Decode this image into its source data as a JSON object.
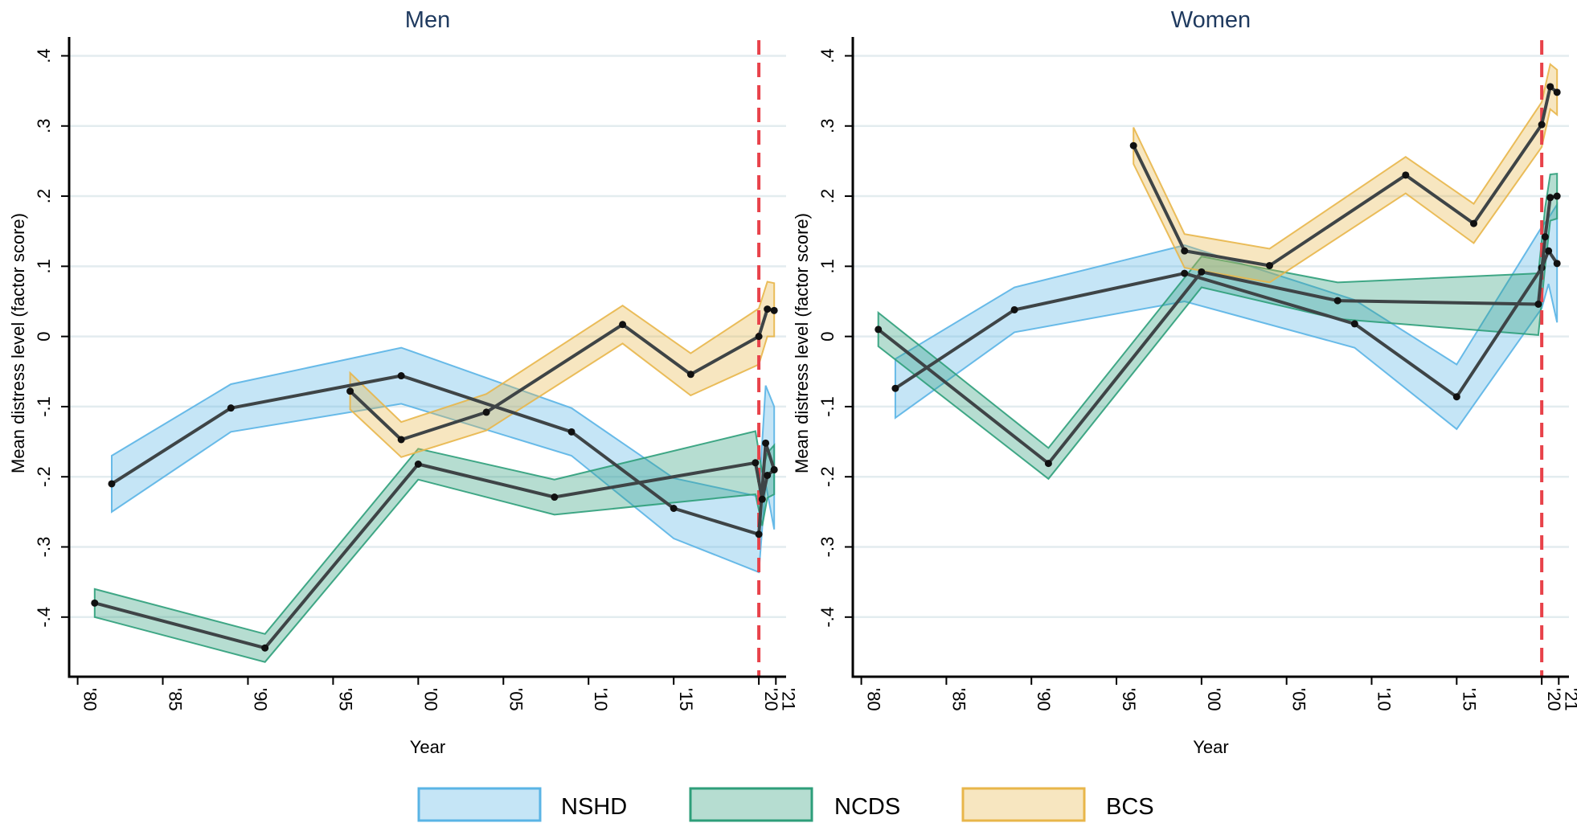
{
  "legend": {
    "items": [
      {
        "label": "NSHD",
        "color": "#5AB4E5"
      },
      {
        "label": "NCDS",
        "color": "#2E9E7A"
      },
      {
        "label": "BCS",
        "color": "#E8B64A"
      }
    ]
  },
  "chart_data": [
    {
      "type": "line",
      "title": "Men",
      "xlabel": "Year",
      "ylabel": "Mean distress level (factor score)",
      "xlim": [
        1979.5,
        2021.6
      ],
      "ylim": [
        -0.485,
        0.42
      ],
      "y_ticks": [
        -0.4,
        -0.3,
        -0.2,
        -0.1,
        0,
        0.1,
        0.2,
        0.3,
        0.4
      ],
      "y_tick_labels": [
        "-.4",
        "-.3",
        "-.2",
        "-.1",
        "0",
        ".1",
        ".2",
        ".3",
        ".4"
      ],
      "x_ticks": [
        1980,
        1985,
        1990,
        1995,
        2000,
        2005,
        2010,
        2015,
        2020,
        2021
      ],
      "x_tick_labels": [
        "'80",
        "'85",
        "'90",
        "'95",
        "'00",
        "'05",
        "'10",
        "'15",
        "'20",
        "'21"
      ],
      "grid": true,
      "reference_line": {
        "x": 2020,
        "color": "#E8424A",
        "style": "dashed"
      },
      "series": [
        {
          "name": "NSHD",
          "color": "#5AB4E5",
          "x": [
            1982,
            1989,
            1999,
            2009,
            2015,
            2020,
            2020.4,
            2020.9
          ],
          "y": [
            -0.21,
            -0.102,
            -0.056,
            -0.136,
            -0.245,
            -0.282,
            -0.152,
            -0.19
          ],
          "ci_low": [
            -0.25,
            -0.136,
            -0.096,
            -0.17,
            -0.288,
            -0.336,
            -0.21,
            -0.275
          ],
          "ci_high": [
            -0.17,
            -0.068,
            -0.016,
            -0.102,
            -0.202,
            -0.228,
            -0.07,
            -0.1
          ]
        },
        {
          "name": "NCDS",
          "color": "#2E9E7A",
          "x": [
            1981,
            1991,
            2000,
            2008,
            2019.8,
            2020.2,
            2020.5,
            2020.9
          ],
          "y": [
            -0.38,
            -0.444,
            -0.182,
            -0.229,
            -0.18,
            -0.232,
            -0.198,
            -0.19
          ],
          "ci_low": [
            -0.4,
            -0.464,
            -0.204,
            -0.254,
            -0.225,
            -0.27,
            -0.23,
            -0.225
          ],
          "ci_high": [
            -0.36,
            -0.424,
            -0.16,
            -0.204,
            -0.135,
            -0.194,
            -0.166,
            -0.155
          ]
        },
        {
          "name": "BCS",
          "color": "#E8B64A",
          "x": [
            1996,
            1999,
            2004,
            2012,
            2016,
            2020,
            2020.5,
            2020.9
          ],
          "y": [
            -0.078,
            -0.147,
            -0.108,
            0.017,
            -0.054,
            0.0,
            0.039,
            0.037
          ],
          "ci_low": [
            -0.104,
            -0.172,
            -0.134,
            -0.01,
            -0.084,
            -0.04,
            0.0,
            0.0
          ],
          "ci_high": [
            -0.052,
            -0.122,
            -0.082,
            0.044,
            -0.024,
            0.04,
            0.078,
            0.076
          ]
        }
      ]
    },
    {
      "type": "line",
      "title": "Women",
      "xlabel": "Year",
      "ylabel": "Mean distress level (factor score)",
      "xlim": [
        1979.5,
        2021.6
      ],
      "ylim": [
        -0.485,
        0.42
      ],
      "y_ticks": [
        -0.4,
        -0.3,
        -0.2,
        -0.1,
        0,
        0.1,
        0.2,
        0.3,
        0.4
      ],
      "y_tick_labels": [
        "-.4",
        "-.3",
        "-.2",
        "-.1",
        "0",
        ".1",
        ".2",
        ".3",
        ".4"
      ],
      "x_ticks": [
        1980,
        1985,
        1990,
        1995,
        2000,
        2005,
        2010,
        2015,
        2020,
        2021
      ],
      "x_tick_labels": [
        "'80",
        "'85",
        "'90",
        "'95",
        "'00",
        "'05",
        "'10",
        "'15",
        "'20",
        "'21"
      ],
      "grid": true,
      "reference_line": {
        "x": 2020,
        "color": "#E8424A",
        "style": "dashed"
      },
      "series": [
        {
          "name": "NSHD",
          "color": "#5AB4E5",
          "x": [
            1982,
            1989,
            1999,
            2009,
            2015,
            2020,
            2020.4,
            2020.9
          ],
          "y": [
            -0.074,
            0.038,
            0.09,
            0.018,
            -0.086,
            0.098,
            0.122,
            0.104
          ],
          "ci_low": [
            -0.116,
            0.006,
            0.05,
            -0.016,
            -0.132,
            0.04,
            0.075,
            0.02
          ],
          "ci_high": [
            -0.032,
            0.07,
            0.13,
            0.052,
            -0.04,
            0.156,
            0.169,
            0.188
          ]
        },
        {
          "name": "NCDS",
          "color": "#2E9E7A",
          "x": [
            1981,
            1991,
            2000,
            2008,
            2019.8,
            2020.2,
            2020.5,
            2020.9
          ],
          "y": [
            0.01,
            -0.181,
            0.092,
            0.051,
            0.046,
            0.142,
            0.198,
            0.2
          ],
          "ci_low": [
            -0.014,
            -0.203,
            0.07,
            0.025,
            0.002,
            0.1,
            0.165,
            0.168
          ],
          "ci_high": [
            0.034,
            -0.159,
            0.114,
            0.077,
            0.09,
            0.184,
            0.231,
            0.232
          ]
        },
        {
          "name": "BCS",
          "color": "#E8B64A",
          "x": [
            1996,
            1999,
            2004,
            2012,
            2016,
            2020,
            2020.5,
            2020.9
          ],
          "y": [
            0.272,
            0.122,
            0.101,
            0.23,
            0.161,
            0.302,
            0.356,
            0.348
          ],
          "ci_low": [
            0.246,
            0.098,
            0.077,
            0.204,
            0.133,
            0.27,
            0.324,
            0.316
          ],
          "ci_high": [
            0.298,
            0.146,
            0.125,
            0.256,
            0.189,
            0.334,
            0.388,
            0.38
          ]
        }
      ]
    }
  ]
}
